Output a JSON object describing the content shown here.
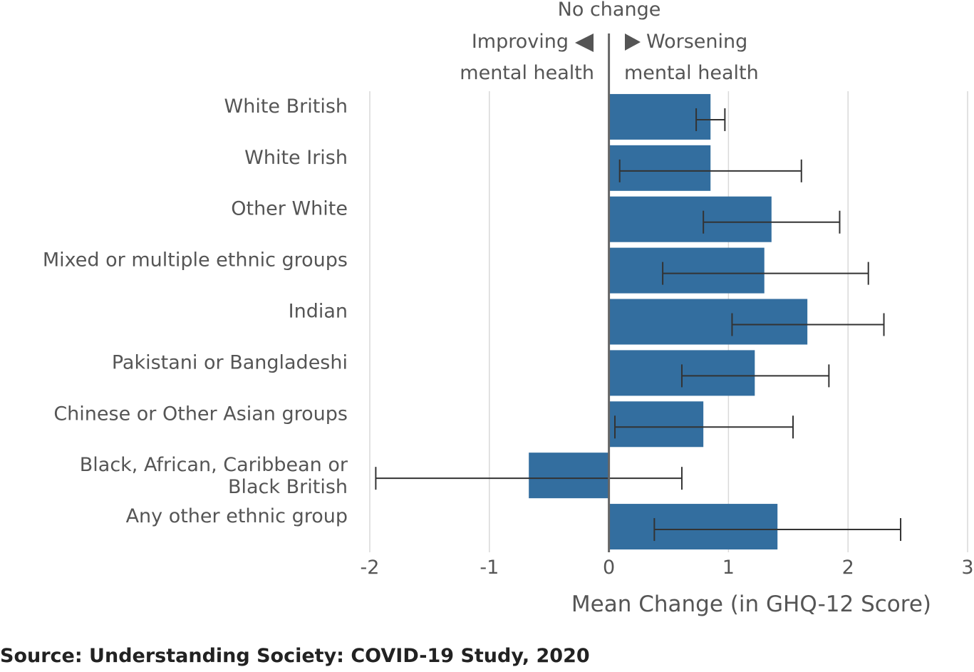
{
  "chart_data": {
    "type": "bar",
    "orientation": "horizontal",
    "categories": [
      "White British",
      "White Irish",
      "Other White",
      "Mixed or multiple ethnic groups",
      "Indian",
      "Pakistani or Bangladeshi",
      "Chinese or Other Asian groups",
      "Black, African, Caribbean or Black British",
      "Any other ethnic group"
    ],
    "values": [
      0.85,
      0.85,
      1.36,
      1.3,
      1.66,
      1.22,
      0.79,
      -0.67,
      1.41
    ],
    "error_low": [
      0.73,
      0.09,
      0.79,
      0.45,
      1.03,
      0.61,
      0.05,
      -1.95,
      0.38
    ],
    "error_high": [
      0.97,
      1.61,
      1.93,
      2.17,
      2.3,
      1.84,
      1.54,
      0.61,
      2.44
    ],
    "xlim": [
      -2,
      3
    ],
    "xticks": [
      "-2",
      "-1",
      "0",
      "1",
      "2",
      "3"
    ],
    "xlabel": "Mean Change (in GHQ-12 Score)",
    "grid": "vertical",
    "annotations": {
      "zero_line": "No change",
      "left_line1": "Improving",
      "left_line2": "mental health",
      "right_line1": "Worsening",
      "right_line2": "mental health"
    },
    "colors": {
      "bar": "#336e9f",
      "error": "#333333",
      "grid": "#d9d9d9",
      "zero": "#666666",
      "text": "#555555"
    }
  },
  "source": "Source: Understanding Society: COVID-19 Study, 2020"
}
